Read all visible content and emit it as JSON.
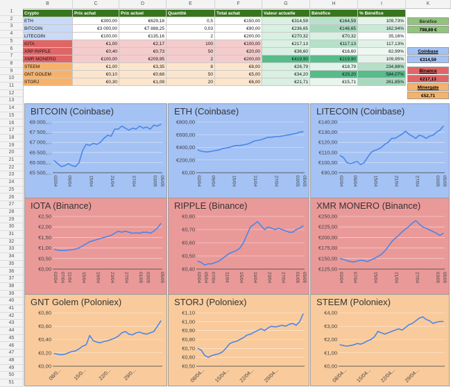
{
  "column_headers": [
    "B",
    "C",
    "D",
    "E",
    "F",
    "G",
    "H",
    "I",
    "K"
  ],
  "row_numbers": [
    "1",
    "2",
    "3",
    "4",
    "5",
    "6",
    "7",
    "8",
    "9",
    "10",
    "11",
    "12",
    "13",
    "14",
    "15",
    "16",
    "17",
    "18",
    "19",
    "20",
    "21",
    "22",
    "23",
    "24",
    "25",
    "26",
    "27",
    "28",
    "29",
    "30",
    "31",
    "32",
    "33",
    "34",
    "35",
    "36",
    "37",
    "38",
    "39",
    "40",
    "41",
    "42",
    "43",
    "44",
    "45",
    "46",
    "47",
    "48",
    "49",
    "50",
    "51"
  ],
  "table": {
    "headers": [
      "Crypto",
      "Prix achat",
      "Prix actuel",
      "Quantité",
      "Total achat",
      "Valeur actuelle",
      "Bénéfice",
      "% Bénéfice"
    ],
    "rows": [
      {
        "cells": [
          "ETH",
          "€300,00",
          "€629,18",
          "0,5",
          "€150,00",
          "€314,59",
          "€164,59",
          "109,73%"
        ],
        "color": "#f3f3f3"
      },
      {
        "cells": [
          "BITCOIN",
          "€3 000,00",
          "€7 888,25",
          "0,03",
          "€90,00",
          "€236,65",
          "€146,65",
          "162,94%"
        ],
        "color": "#f3f3f3"
      },
      {
        "cells": [
          "LITECOIN",
          "€100,00",
          "€135,16",
          "2",
          "€200,00",
          "€270,32",
          "€70,32",
          "35,16%"
        ],
        "color": "#f3f3f3"
      },
      {
        "cells": [
          "IOTA",
          "€1,00",
          "€2,17",
          "100",
          "€100,00",
          "€217,13",
          "€117,13",
          "117,13%"
        ],
        "color": "#e06666"
      },
      {
        "cells": [
          "XRP RIPPLE",
          "€0,40",
          "€0,73",
          "50",
          "€20,00",
          "€36,60",
          "€16,60",
          "82,99%"
        ],
        "color": "#e06666"
      },
      {
        "cells": [
          "XMR MONERO",
          "€100,00",
          "€209,95",
          "2",
          "€200,00",
          "€419,90",
          "€219,90",
          "109,95%"
        ],
        "color": "#e06666"
      },
      {
        "cells": [
          "STEEM",
          "€1,00",
          "€3,35",
          "8",
          "€8,00",
          "€26,79",
          "€18,79",
          "234,88%"
        ],
        "color": "#f6b26b"
      },
      {
        "cells": [
          "GNT GOLEM",
          "€0,10",
          "€0,68",
          "50",
          "€5,00",
          "€34,20",
          "€29,20",
          "584,07%"
        ],
        "color": "#f6b26b"
      },
      {
        "cells": [
          "STORJ",
          "€0,30",
          "€1,09",
          "20",
          "€6,00",
          "€21,71",
          "€15,71",
          "261,85%"
        ],
        "color": "#f6b26b"
      }
    ]
  },
  "summary": {
    "benefice_label": "Bénéfice",
    "benefice_total": "798,89 €",
    "exchanges": [
      {
        "name": "Coinbase",
        "total": "€314,59"
      },
      {
        "name": "Binance",
        "total": "€217,13"
      },
      {
        "name": "Minergate",
        "total": "€52,71"
      }
    ]
  },
  "colors": {
    "header_green": "#38761d",
    "coinbase_blue": "#a4c2f4",
    "binance_red": "#ea9999",
    "poloniex_orange": "#f9cb9c",
    "line_blue": "#4a86e8"
  },
  "chart_data": [
    {
      "type": "line",
      "title": "BITCOIN (Coinbase)",
      "group": "coinbase",
      "x": [
        "02/04",
        "",
        "",
        "",
        "09/04",
        "",
        "",
        "",
        "",
        "",
        "15/04",
        "",
        "",
        "",
        "",
        "",
        "21/04",
        "",
        "",
        "",
        "",
        "",
        "27/04",
        "",
        "",
        "",
        "",
        "",
        "03/05",
        "",
        "05/05"
      ],
      "ylabels": [
        "€8 000,...",
        "€7 500,...",
        "€7 000,...",
        "€6 500,...",
        "€6 000,...",
        "€5 500,..."
      ],
      "ylim": [
        5500,
        8000
      ],
      "values": [
        6100,
        5950,
        5800,
        5850,
        5950,
        5850,
        5800,
        6000,
        6600,
        6900,
        6850,
        6950,
        6900,
        7000,
        7200,
        7350,
        7300,
        7650,
        7650,
        7800,
        7700,
        7600,
        7700,
        7650,
        7800,
        7700,
        7750,
        7650,
        7850,
        7800,
        7900
      ]
    },
    {
      "type": "line",
      "title": "ETH (Coinbase)",
      "group": "coinbase",
      "x": [
        "02/04",
        "",
        "",
        "",
        "09/04",
        "",
        "",
        "",
        "",
        "",
        "15/04",
        "",
        "",
        "",
        "",
        "",
        "21/04",
        "",
        "",
        "",
        "",
        "",
        "27/04",
        "",
        "",
        "",
        "",
        "",
        "03/05",
        "",
        "05/05"
      ],
      "ylabels": [
        "€800,00",
        "€600,00",
        "€400,00",
        "€200,00",
        "€0,00"
      ],
      "ylim": [
        0,
        800
      ],
      "values": [
        360,
        340,
        330,
        330,
        340,
        350,
        360,
        380,
        390,
        400,
        420,
        430,
        430,
        440,
        450,
        470,
        500,
        510,
        520,
        540,
        560,
        560,
        570,
        570,
        580,
        590,
        600,
        610,
        620,
        640,
        650
      ]
    },
    {
      "type": "line",
      "title": "LITECOIN (Coinbase)",
      "group": "coinbase",
      "x": [
        "02/04",
        "",
        "",
        "",
        "09/04",
        "",
        "",
        "",
        "",
        "",
        "15/04",
        "",
        "",
        "",
        "",
        "",
        "21/04",
        "",
        "",
        "",
        "",
        "",
        "27/04",
        "",
        "",
        "",
        "",
        "",
        "03/05",
        "",
        "05/05"
      ],
      "ylabels": [
        "€140,00",
        "€130,00",
        "€120,00",
        "€110,00",
        "€100,00",
        "€90,00"
      ],
      "ylim": [
        90,
        140
      ],
      "values": [
        107,
        105,
        100,
        99,
        100,
        101,
        98,
        100,
        105,
        110,
        112,
        113,
        115,
        118,
        120,
        124,
        124,
        126,
        128,
        131,
        128,
        126,
        124,
        127,
        126,
        124,
        126,
        127,
        130,
        132,
        136
      ]
    },
    {
      "type": "line",
      "title": "IOTA (Binance)",
      "group": "binance",
      "x": [
        "02/04",
        "",
        "07/04",
        "",
        "11/04",
        "",
        "",
        "",
        "15/04",
        "",
        "",
        "",
        "19/04",
        "",
        "",
        "",
        "23/04",
        "",
        "",
        "",
        "27/04",
        "",
        "",
        "",
        "01/05",
        "",
        "03/05",
        "",
        "",
        "",
        "05/05"
      ],
      "ylabels": [
        "€2,50",
        "€2,00",
        "€1,50",
        "€1,00",
        "€0,50",
        "€0,00"
      ],
      "ylim": [
        0,
        2.5
      ],
      "values": [
        0.95,
        0.9,
        0.88,
        0.88,
        0.9,
        0.92,
        0.95,
        1.0,
        1.1,
        1.2,
        1.3,
        1.35,
        1.4,
        1.45,
        1.5,
        1.55,
        1.6,
        1.7,
        1.8,
        1.75,
        1.8,
        1.75,
        1.7,
        1.72,
        1.7,
        1.75,
        1.75,
        1.7,
        1.8,
        1.95,
        2.17
      ]
    },
    {
      "type": "line",
      "title": "RIPPLE (Binance)",
      "group": "binance",
      "x": [
        "02/04",
        "",
        "05/04",
        "",
        "07/04",
        "",
        "",
        "",
        "11/04",
        "",
        "",
        "",
        "15/04",
        "",
        "",
        "",
        "19/04",
        "",
        "",
        "",
        "23/04",
        "",
        "",
        "",
        "27/04",
        "",
        "",
        "",
        "01/05",
        "",
        "05/05"
      ],
      "ylabels": [
        "€0,80",
        "€0,70",
        "€0,60",
        "€0,50",
        "€0,40"
      ],
      "ylim": [
        0.4,
        0.8
      ],
      "values": [
        0.46,
        0.45,
        0.43,
        0.44,
        0.44,
        0.45,
        0.46,
        0.48,
        0.5,
        0.52,
        0.53,
        0.54,
        0.56,
        0.6,
        0.66,
        0.72,
        0.74,
        0.76,
        0.73,
        0.7,
        0.72,
        0.71,
        0.7,
        0.71,
        0.7,
        0.69,
        0.68,
        0.68,
        0.7,
        0.71,
        0.73
      ]
    },
    {
      "type": "line",
      "title": "XMR MONERO (Binance)",
      "group": "binance",
      "x": [
        "02/04",
        "",
        "",
        "",
        "07/04",
        "",
        "",
        "",
        "",
        "",
        "15/04",
        "",
        "",
        "",
        "",
        "",
        "21/04",
        "",
        "",
        "",
        "",
        "",
        "27/04",
        "",
        "",
        "",
        "",
        "",
        "03/05",
        "",
        "05/05"
      ],
      "ylabels": [
        "€250,00",
        "€225,00",
        "€200,00",
        "€175,00",
        "€150,00",
        "€125,00"
      ],
      "ylim": [
        125,
        250
      ],
      "values": [
        150,
        148,
        145,
        143,
        142,
        144,
        146,
        145,
        143,
        147,
        150,
        155,
        160,
        168,
        178,
        190,
        198,
        205,
        213,
        220,
        226,
        234,
        240,
        232,
        225,
        222,
        218,
        214,
        210,
        205,
        210
      ]
    },
    {
      "type": "line",
      "title": "GNT Golem (Poloniex)",
      "group": "poloniex",
      "x": [
        "",
        "",
        "08/0...",
        "",
        "",
        "",
        "",
        "",
        "",
        "15/0...",
        "",
        "",
        "",
        "",
        "",
        "",
        "22/0...",
        "",
        "",
        "",
        "",
        "",
        "",
        "29/0...",
        "",
        "",
        "",
        "",
        "",
        "",
        ""
      ],
      "ylabels": [
        "€0,80",
        "€0,60",
        "€0,40",
        "€0,20",
        "€0,00"
      ],
      "ylim": [
        0,
        0.8
      ],
      "values": [
        0.19,
        0.18,
        0.17,
        0.18,
        0.2,
        0.22,
        0.23,
        0.26,
        0.3,
        0.32,
        0.46,
        0.38,
        0.36,
        0.35,
        0.37,
        0.38,
        0.4,
        0.42,
        0.45,
        0.5,
        0.52,
        0.48,
        0.47,
        0.5,
        0.51,
        0.49,
        0.48,
        0.5,
        0.52,
        0.6,
        0.68
      ]
    },
    {
      "type": "line",
      "title": "STORJ (Poloniex)",
      "group": "poloniex",
      "x": [
        "",
        "",
        "08/04...",
        "",
        "",
        "",
        "",
        "",
        "",
        "15/04...",
        "",
        "",
        "",
        "",
        "",
        "",
        "22/04...",
        "",
        "",
        "",
        "",
        "",
        "",
        "29/04...",
        "",
        "",
        "",
        "",
        "",
        "",
        ""
      ],
      "ylabels": [
        "€1,10",
        "€1,00",
        "€0,90",
        "€0,80",
        "€0,70",
        "€0,60",
        "€0,50"
      ],
      "ylim": [
        0.5,
        1.1
      ],
      "values": [
        0.7,
        0.68,
        0.62,
        0.6,
        0.62,
        0.63,
        0.64,
        0.66,
        0.7,
        0.75,
        0.77,
        0.78,
        0.8,
        0.82,
        0.85,
        0.86,
        0.88,
        0.9,
        0.92,
        0.9,
        0.93,
        0.95,
        0.94,
        0.95,
        0.96,
        0.95,
        0.97,
        0.98,
        0.96,
        1.0,
        1.09
      ]
    },
    {
      "type": "line",
      "title": "STEEM (Poloniex)",
      "group": "poloniex",
      "x": [
        "",
        "",
        "08/04...",
        "",
        "",
        "",
        "",
        "",
        "",
        "15/04...",
        "",
        "",
        "",
        "",
        "",
        "",
        "22/04...",
        "",
        "",
        "",
        "",
        "",
        "",
        "29/04...",
        "",
        "",
        "",
        "",
        "",
        "",
        ""
      ],
      "ylabels": [
        "€4,00",
        "€3,00",
        "€2,00",
        "€1,00",
        "€0,00"
      ],
      "ylim": [
        0,
        4
      ],
      "values": [
        1.6,
        1.55,
        1.5,
        1.55,
        1.6,
        1.7,
        1.65,
        1.75,
        1.9,
        2.0,
        2.2,
        2.6,
        2.5,
        2.4,
        2.5,
        2.6,
        2.7,
        2.8,
        2.7,
        2.9,
        3.1,
        3.2,
        3.4,
        3.6,
        3.7,
        3.5,
        3.4,
        3.2,
        3.3,
        3.35,
        3.35
      ]
    }
  ]
}
